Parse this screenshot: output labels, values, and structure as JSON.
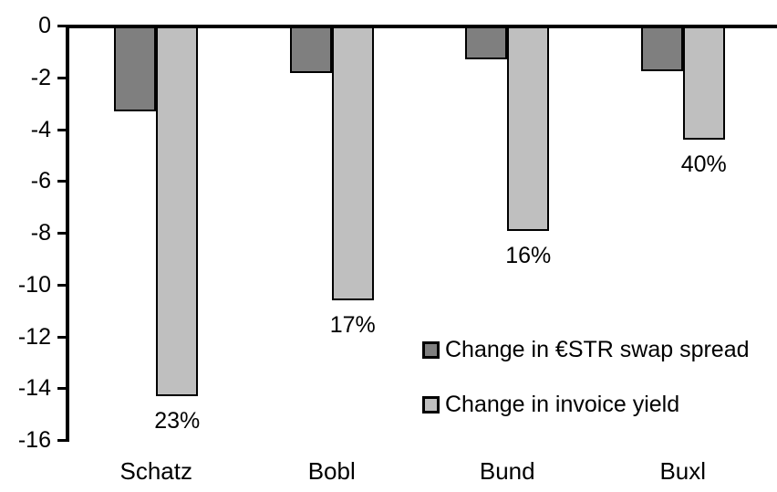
{
  "chart_data": {
    "type": "bar",
    "title": "",
    "xlabel": "",
    "ylabel": "",
    "categories": [
      "Schatz",
      "Bobl",
      "Bund",
      "Buxl"
    ],
    "series": [
      {
        "name": "Change in €STR swap spread",
        "color": "#7f7f7f",
        "values": [
          -3.3,
          -1.8,
          -1.3,
          -1.75
        ]
      },
      {
        "name": "Change in invoice yield",
        "color": "#bfbfbf",
        "values": [
          -14.3,
          -10.6,
          -7.9,
          -4.4
        ],
        "data_labels": [
          "23%",
          "17%",
          "16%",
          "40%"
        ]
      }
    ],
    "ylim": [
      -16,
      0
    ],
    "y_ticks": [
      0,
      -2,
      -4,
      -6,
      -8,
      -10,
      -12,
      -14,
      -16
    ],
    "grid": false,
    "legend_position": "inside-right",
    "bar_border_color": "#000000",
    "axis_color": "#000000",
    "text_color": "#000000",
    "background_color": "#ffffff"
  }
}
